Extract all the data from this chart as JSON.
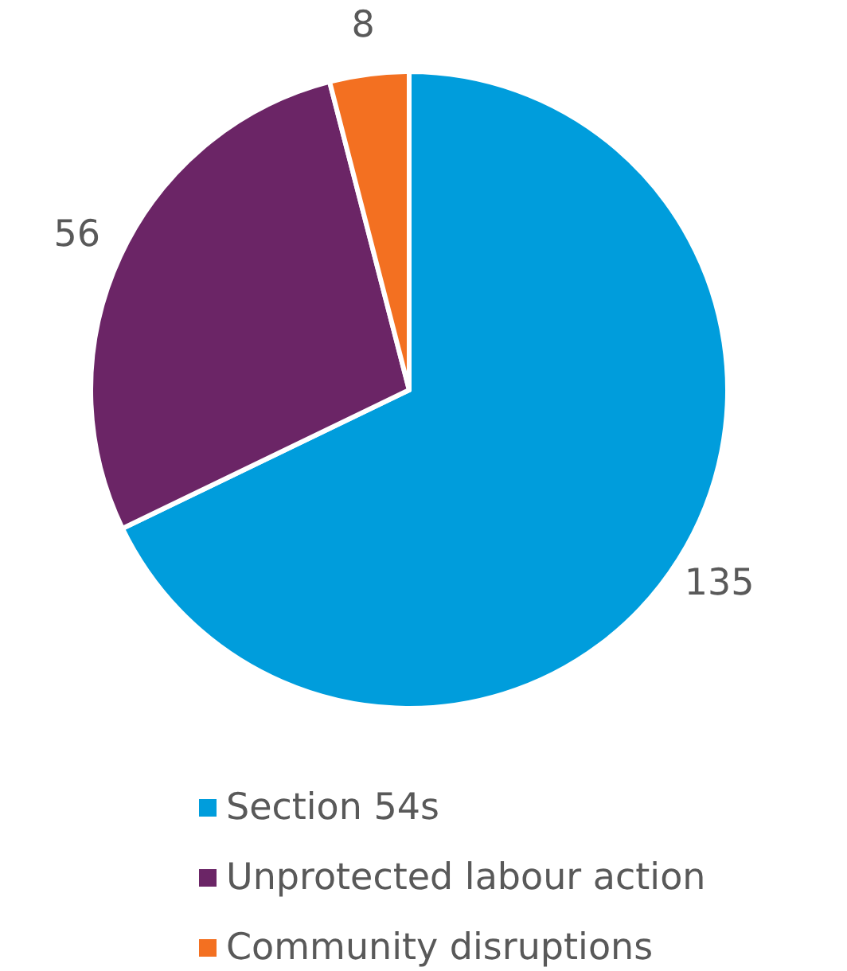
{
  "chart_data": {
    "type": "pie",
    "categories": [
      "Section 54s",
      "Unprotected labour action",
      "Community disruptions"
    ],
    "values": [
      135,
      56,
      8
    ],
    "colors": [
      "#009ddc",
      "#6b2566",
      "#f37021"
    ],
    "data_labels": true,
    "legend": "bottom"
  }
}
